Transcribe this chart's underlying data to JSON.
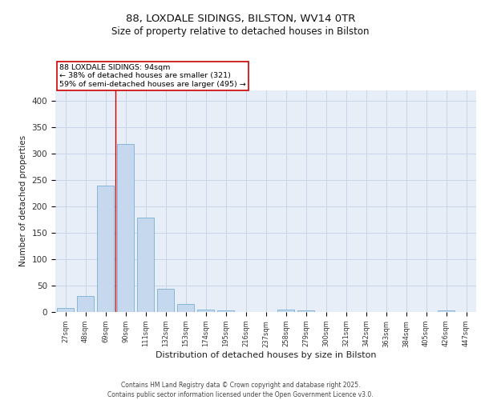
{
  "title_line1": "88, LOXDALE SIDINGS, BILSTON, WV14 0TR",
  "title_line2": "Size of property relative to detached houses in Bilston",
  "xlabel": "Distribution of detached houses by size in Bilston",
  "ylabel": "Number of detached properties",
  "footer_line1": "Contains HM Land Registry data © Crown copyright and database right 2025.",
  "footer_line2": "Contains public sector information licensed under the Open Government Licence v3.0.",
  "categories": [
    "27sqm",
    "48sqm",
    "69sqm",
    "90sqm",
    "111sqm",
    "132sqm",
    "153sqm",
    "174sqm",
    "195sqm",
    "216sqm",
    "237sqm",
    "258sqm",
    "279sqm",
    "300sqm",
    "321sqm",
    "342sqm",
    "363sqm",
    "384sqm",
    "405sqm",
    "426sqm",
    "447sqm"
  ],
  "values": [
    7,
    31,
    239,
    318,
    178,
    44,
    15,
    5,
    3,
    0,
    0,
    5,
    3,
    0,
    0,
    0,
    0,
    0,
    0,
    3,
    0
  ],
  "bar_color": "#c5d8ee",
  "bar_edge_color": "#7bafd4",
  "grid_color": "#c8d4e8",
  "background_color": "#e8eef8",
  "annotation_text": "88 LOXDALE SIDINGS: 94sqm\n← 38% of detached houses are smaller (321)\n59% of semi-detached houses are larger (495) →",
  "annotation_box_color": "white",
  "annotation_box_edge": "#cc0000",
  "vline_color": "#cc0000",
  "vline_x_index": 3,
  "ylim": [
    0,
    420
  ],
  "yticks": [
    0,
    50,
    100,
    150,
    200,
    250,
    300,
    350,
    400
  ]
}
